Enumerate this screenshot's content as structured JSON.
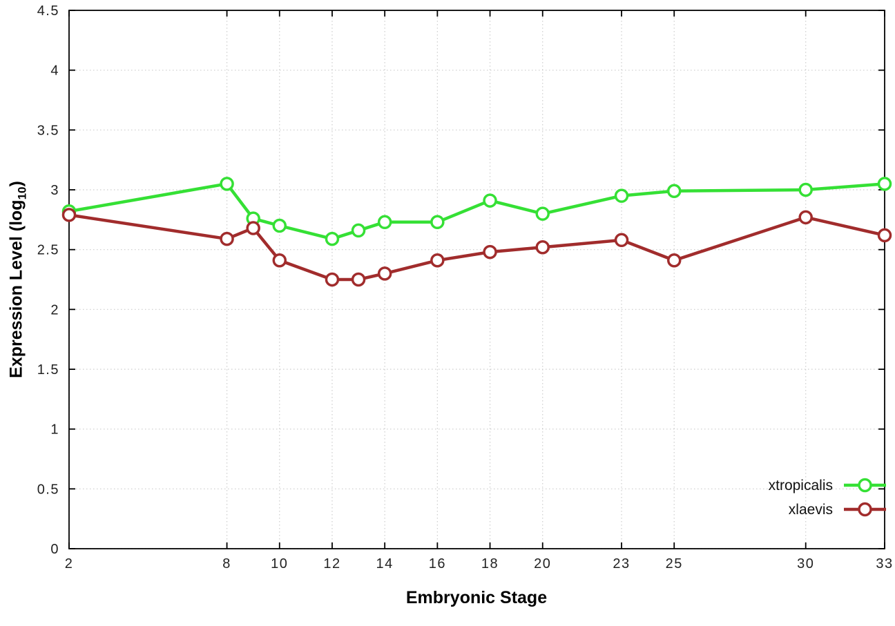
{
  "chart_data": {
    "type": "line",
    "x": [
      2,
      8,
      9,
      10,
      12,
      13,
      14,
      16,
      18,
      20,
      23,
      25,
      30,
      33
    ],
    "series": [
      {
        "name": "xtropicalis",
        "color": "#35e035",
        "values": [
          2.82,
          3.05,
          2.76,
          2.7,
          2.59,
          2.66,
          2.73,
          2.73,
          2.91,
          2.8,
          2.95,
          2.99,
          3.0,
          3.05
        ]
      },
      {
        "name": "xlaevis",
        "color": "#a12c2c",
        "values": [
          2.79,
          2.59,
          2.68,
          2.41,
          2.25,
          2.25,
          2.3,
          2.41,
          2.48,
          2.52,
          2.58,
          2.41,
          2.77,
          2.62
        ]
      }
    ],
    "title": "",
    "xlabel": "Embryonic Stage",
    "ylabel": "Expression Level (log10)",
    "xlim": [
      2,
      33
    ],
    "ylim": [
      0,
      4.5
    ],
    "xticks": [
      2,
      8,
      10,
      12,
      14,
      16,
      18,
      20,
      23,
      25,
      30,
      33
    ],
    "xtick_labels": [
      "2",
      "8",
      "10",
      "12",
      "14",
      "16",
      "18",
      "20",
      "23",
      "25",
      "30",
      "33"
    ],
    "yticks": [
      0,
      0.5,
      1,
      1.5,
      2,
      2.5,
      3,
      3.5,
      4,
      4.5
    ],
    "ytick_labels": [
      "0",
      "0.5",
      "1",
      "1.5",
      "2",
      "2.5",
      "3",
      "3.5",
      "4",
      "4.5"
    ],
    "grid": true,
    "legend_position": "bottom-right",
    "marker": "open-circle"
  },
  "labels": {
    "xlabel": "Embryonic Stage",
    "ylabel_prefix": "Expression Level (log",
    "ylabel_sub": "10",
    "ylabel_suffix": ")"
  }
}
